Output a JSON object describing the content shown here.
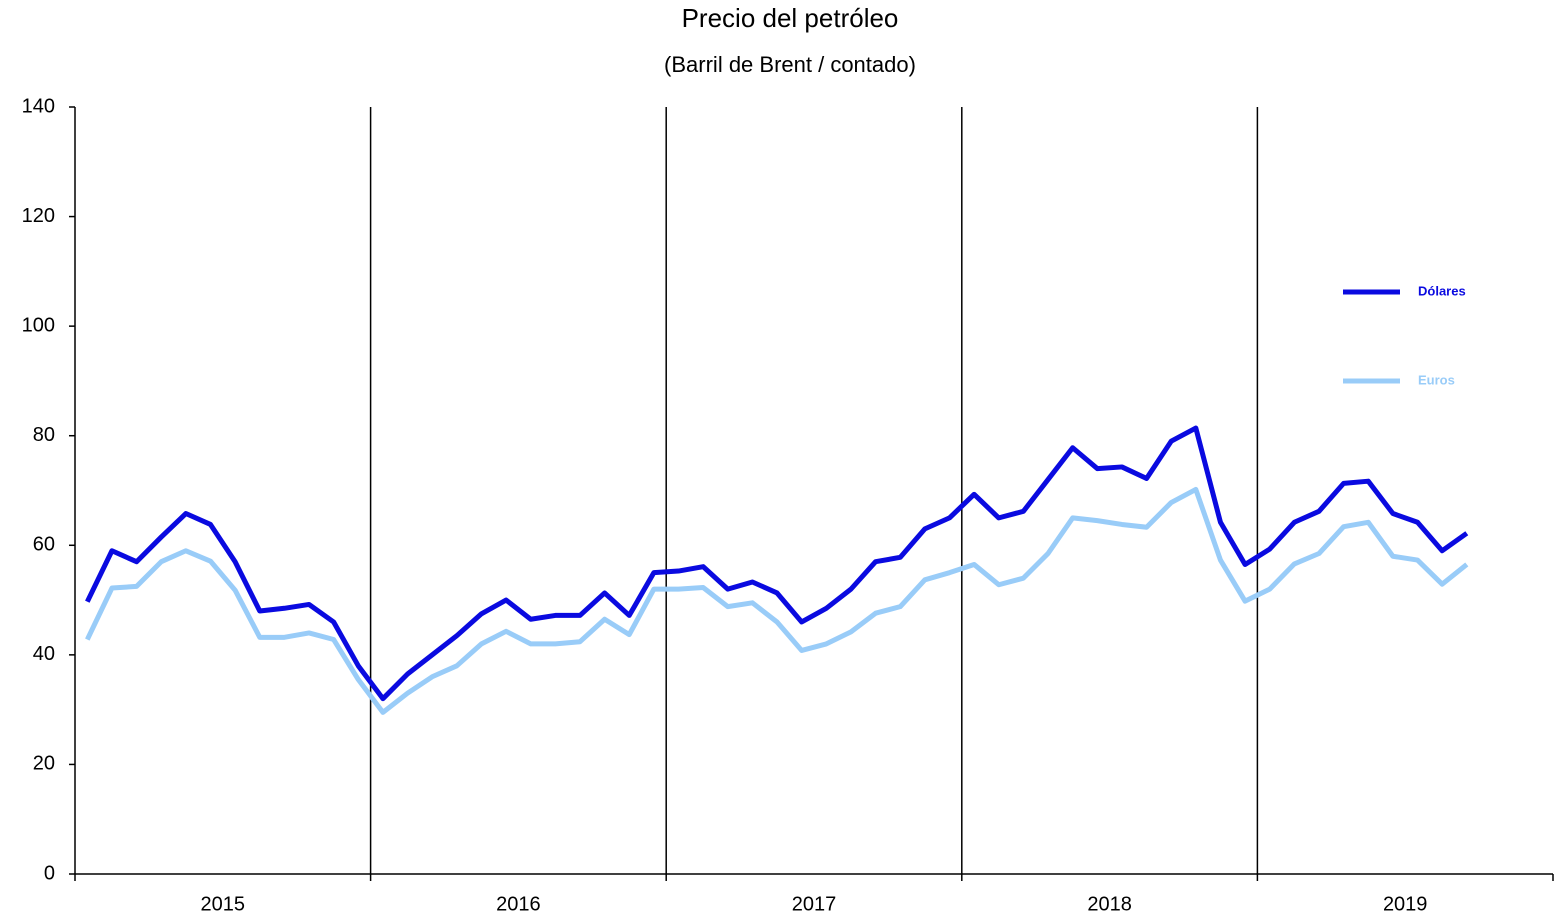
{
  "chart_data": {
    "type": "line",
    "title": "Precio del petróleo",
    "subtitle": "(Barril de Brent / contado)",
    "categories": [
      null,
      null,
      null,
      null,
      null,
      null,
      null,
      null,
      null,
      null,
      null,
      null,
      null,
      null,
      null,
      null,
      null,
      null,
      null,
      null,
      null,
      null,
      null,
      null,
      null,
      null,
      null,
      null,
      null,
      null,
      null,
      null,
      null,
      null,
      null,
      null,
      null,
      null,
      null,
      null,
      null,
      null,
      null,
      null,
      null,
      null,
      null,
      null,
      null,
      null,
      null,
      null,
      null,
      null,
      null,
      null,
      null
    ],
    "year_groups": [
      "2015",
      "2016",
      "2017",
      "2018",
      "2019"
    ],
    "series": [
      {
        "name": "Dólares",
        "color": "#0a0ae0",
        "values": [
          49.7,
          59,
          57,
          61.5,
          65.8,
          63.8,
          57,
          48,
          48.5,
          49.2,
          46,
          38,
          32,
          36.5,
          40,
          43.5,
          47.5,
          50,
          46.5,
          47.2,
          47.2,
          51.3,
          47.2,
          55,
          55.3,
          56.1,
          52,
          53.3,
          51.3,
          46,
          48.5,
          52,
          57,
          57.8,
          63,
          65,
          69.3,
          65,
          66.2,
          72,
          77.8,
          74,
          74.3,
          72.2,
          79,
          81.4,
          64.2,
          56.5,
          59.3,
          64.2,
          66.2,
          71.3,
          71.7,
          65.8,
          64.2,
          59,
          62.2
        ]
      },
      {
        "name": "Euros",
        "color": "#99ccf8",
        "values": [
          42.8,
          52.2,
          52.5,
          57,
          59,
          57.1,
          51.8,
          43.2,
          43.2,
          44,
          42.8,
          35.5,
          29.5,
          33,
          36,
          38,
          42,
          44.3,
          42,
          42,
          42.4,
          46.5,
          43.7,
          52,
          52,
          52.3,
          48.8,
          49.5,
          46,
          40.8,
          42,
          44.2,
          47.6,
          48.8,
          53.7,
          55,
          56.5,
          52.8,
          54,
          58.5,
          65,
          64.5,
          63.8,
          63.3,
          67.8,
          70.2,
          57.3,
          49.8,
          52,
          56.6,
          58.5,
          63.4,
          64.2,
          58,
          57.3,
          52.9,
          56.5
        ]
      }
    ],
    "ylim": [
      0,
      140
    ],
    "yticks": [
      0,
      20,
      40,
      60,
      80,
      100,
      120,
      140
    ],
    "legend_position": "right"
  }
}
